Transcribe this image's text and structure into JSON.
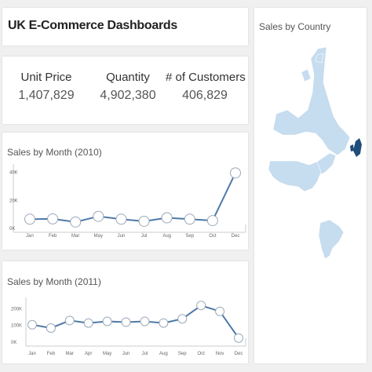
{
  "header": {
    "title": "UK E-Commerce Dashboards"
  },
  "kpis": [
    {
      "label": "Unit Price",
      "value": "1,407,829"
    },
    {
      "label": "Quantity",
      "value": "4,902,380"
    },
    {
      "label": "# of Customers",
      "value": "406,829"
    }
  ],
  "colors": {
    "line": "#4e79a7",
    "map_fill": "#c6dcef",
    "map_highlight": "#1f4e79"
  },
  "map": {
    "title": "Sales by Country",
    "highlighted_country": "United Kingdom"
  },
  "chart_data": [
    {
      "type": "line",
      "title": "Sales by Month (2010)",
      "categories": [
        "Jan",
        "Feb",
        "Mar",
        "May",
        "Jun",
        "Jul",
        "Aug",
        "Sep",
        "Oct",
        "Dec"
      ],
      "values": [
        6000,
        6200,
        4000,
        8000,
        6000,
        4500,
        7000,
        6000,
        5000,
        39000
      ],
      "yticks": [
        "0K",
        "20K",
        "40K"
      ],
      "ylim": [
        0,
        42000
      ]
    },
    {
      "type": "line",
      "title": "Sales by Month (2011)",
      "categories": [
        "Jan",
        "Feb",
        "Mar",
        "Apr",
        "May",
        "Jun",
        "Jul",
        "Aug",
        "Sep",
        "Oct",
        "Nov",
        "Dec"
      ],
      "values": [
        100000,
        80000,
        125000,
        110000,
        120000,
        115000,
        120000,
        110000,
        135000,
        215000,
        180000,
        20000
      ],
      "yticks": [
        "0K",
        "100K",
        "200K"
      ],
      "ylim": [
        0,
        235000
      ]
    }
  ]
}
